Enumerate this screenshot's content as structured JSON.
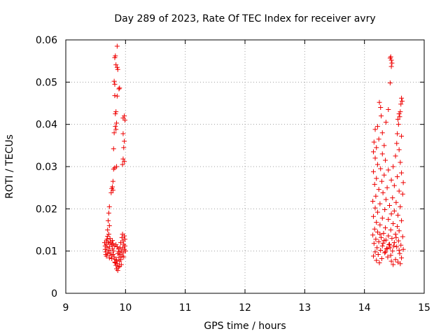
{
  "chart_data": {
    "type": "scatter",
    "title": "Day 289 of 2023, Rate Of TEC Index for receiver avry",
    "xlabel": "GPS time / hours",
    "ylabel": "ROTI / TECUs",
    "xlim": [
      9,
      15
    ],
    "ylim": [
      0,
      0.06
    ],
    "xticks": [
      9,
      10,
      11,
      12,
      13,
      14,
      15
    ],
    "xtick_labels": [
      "9",
      "10",
      "11",
      "12",
      "13",
      "14",
      "15"
    ],
    "yticks": [
      0,
      0.01,
      0.02,
      0.03,
      0.04,
      0.05,
      0.06
    ],
    "ytick_labels": [
      "0",
      "0.01",
      "0.02",
      "0.03",
      "0.04",
      "0.05",
      "0.06"
    ],
    "grid": true,
    "marker": "plus",
    "color": "#ee0000",
    "series": [
      {
        "name": "ROTI",
        "points": [
          [
            9.86,
            0.0585
          ],
          [
            9.83,
            0.0562
          ],
          [
            9.82,
            0.0558
          ],
          [
            9.84,
            0.0541
          ],
          [
            9.86,
            0.0535
          ],
          [
            9.87,
            0.053
          ],
          [
            9.81,
            0.0502
          ],
          [
            9.82,
            0.0495
          ],
          [
            9.9,
            0.0486
          ],
          [
            9.89,
            0.0484
          ],
          [
            9.82,
            0.0468
          ],
          [
            9.86,
            0.0467
          ],
          [
            9.84,
            0.043
          ],
          [
            9.83,
            0.0425
          ],
          [
            9.98,
            0.042
          ],
          [
            9.96,
            0.0415
          ],
          [
            9.99,
            0.041
          ],
          [
            9.85,
            0.0403
          ],
          [
            9.83,
            0.0395
          ],
          [
            9.84,
            0.0388
          ],
          [
            9.81,
            0.038
          ],
          [
            9.96,
            0.0378
          ],
          [
            9.98,
            0.036
          ],
          [
            9.97,
            0.0345
          ],
          [
            9.8,
            0.0342
          ],
          [
            9.96,
            0.0318
          ],
          [
            9.98,
            0.0312
          ],
          [
            9.95,
            0.0305
          ],
          [
            9.85,
            0.03
          ],
          [
            9.82,
            0.0297
          ],
          [
            9.8,
            0.0294
          ],
          [
            9.79,
            0.0265
          ],
          [
            9.78,
            0.0252
          ],
          [
            9.77,
            0.0248
          ],
          [
            9.79,
            0.0244
          ],
          [
            9.76,
            0.0238
          ],
          [
            9.73,
            0.0205
          ],
          [
            9.72,
            0.019
          ],
          [
            9.71,
            0.0172
          ],
          [
            9.73,
            0.016
          ],
          [
            9.7,
            0.015
          ],
          [
            9.72,
            0.014
          ],
          [
            9.7,
            0.0135
          ],
          [
            9.74,
            0.013
          ],
          [
            9.69,
            0.0128
          ],
          [
            9.68,
            0.0124
          ],
          [
            9.71,
            0.012
          ],
          [
            9.75,
            0.0118
          ],
          [
            9.77,
            0.0115
          ],
          [
            9.66,
            0.0112
          ],
          [
            9.73,
            0.011
          ],
          [
            9.69,
            0.0108
          ],
          [
            9.78,
            0.0105
          ],
          [
            9.72,
            0.0102
          ],
          [
            9.8,
            0.01
          ],
          [
            9.67,
            0.0098
          ],
          [
            9.74,
            0.0096
          ],
          [
            9.7,
            0.0094
          ],
          [
            9.79,
            0.0092
          ],
          [
            9.76,
            0.009
          ],
          [
            9.68,
            0.0088
          ],
          [
            9.81,
            0.0086
          ],
          [
            9.73,
            0.0084
          ],
          [
            9.77,
            0.0082
          ],
          [
            9.83,
            0.008
          ],
          [
            9.85,
            0.0078
          ],
          [
            9.82,
            0.0074
          ],
          [
            9.86,
            0.007
          ],
          [
            9.84,
            0.0066
          ],
          [
            9.88,
            0.0062
          ],
          [
            9.85,
            0.0058
          ],
          [
            9.87,
            0.0054
          ],
          [
            9.83,
            0.0072
          ],
          [
            9.9,
            0.0076
          ],
          [
            9.92,
            0.008
          ],
          [
            9.89,
            0.0085
          ],
          [
            9.94,
            0.0088
          ],
          [
            9.91,
            0.0092
          ],
          [
            9.96,
            0.0096
          ],
          [
            9.93,
            0.01
          ],
          [
            9.98,
            0.0104
          ],
          [
            9.95,
            0.0108
          ],
          [
            9.99,
            0.0112
          ],
          [
            9.97,
            0.0116
          ],
          [
            9.92,
            0.012
          ],
          [
            9.96,
            0.0124
          ],
          [
            9.99,
            0.0128
          ],
          [
            9.94,
            0.0132
          ],
          [
            9.98,
            0.0136
          ],
          [
            9.95,
            0.014
          ],
          [
            9.88,
            0.0105
          ],
          [
            9.86,
            0.011
          ],
          [
            9.84,
            0.0115
          ],
          [
            9.89,
            0.0098
          ],
          [
            9.87,
            0.0094
          ],
          [
            9.91,
            0.0108
          ],
          [
            9.78,
            0.0125
          ],
          [
            9.75,
            0.0122
          ],
          [
            9.81,
            0.0112
          ],
          [
            9.79,
            0.0118
          ],
          [
            9.68,
            0.0116
          ],
          [
            9.66,
            0.0104
          ],
          [
            9.67,
            0.0092
          ],
          [
            9.93,
            0.0068
          ],
          [
            9.9,
            0.0064
          ],
          [
            9.97,
            0.0086
          ],
          [
            10.0,
            0.01
          ],
          [
            9.65,
            0.012
          ],
          [
            14.44,
            0.056
          ],
          [
            14.45,
            0.0552
          ],
          [
            14.43,
            0.0557
          ],
          [
            14.46,
            0.0545
          ],
          [
            14.45,
            0.0537
          ],
          [
            14.62,
            0.0462
          ],
          [
            14.63,
            0.0455
          ],
          [
            14.61,
            0.0448
          ],
          [
            14.43,
            0.0498
          ],
          [
            14.4,
            0.0435
          ],
          [
            14.25,
            0.0452
          ],
          [
            14.27,
            0.044
          ],
          [
            14.6,
            0.043
          ],
          [
            14.58,
            0.0425
          ],
          [
            14.59,
            0.0418
          ],
          [
            14.28,
            0.042
          ],
          [
            14.56,
            0.0412
          ],
          [
            14.36,
            0.0405
          ],
          [
            14.57,
            0.04
          ],
          [
            14.22,
            0.0395
          ],
          [
            14.18,
            0.0388
          ],
          [
            14.3,
            0.038
          ],
          [
            14.55,
            0.0378
          ],
          [
            14.62,
            0.0372
          ],
          [
            14.24,
            0.0365
          ],
          [
            14.16,
            0.0358
          ],
          [
            14.54,
            0.0355
          ],
          [
            14.33,
            0.035
          ],
          [
            14.2,
            0.0345
          ],
          [
            14.58,
            0.034
          ],
          [
            14.15,
            0.0335
          ],
          [
            14.3,
            0.033
          ],
          [
            14.52,
            0.0325
          ],
          [
            14.18,
            0.032
          ],
          [
            14.35,
            0.0315
          ],
          [
            14.6,
            0.031
          ],
          [
            14.22,
            0.0305
          ],
          [
            14.48,
            0.03
          ],
          [
            14.27,
            0.0295
          ],
          [
            14.4,
            0.0292
          ],
          [
            14.15,
            0.0288
          ],
          [
            14.62,
            0.0285
          ],
          [
            14.33,
            0.028
          ],
          [
            14.55,
            0.0276
          ],
          [
            14.2,
            0.0272
          ],
          [
            14.45,
            0.0268
          ],
          [
            14.29,
            0.0265
          ],
          [
            14.65,
            0.0262
          ],
          [
            14.17,
            0.0258
          ],
          [
            14.5,
            0.0255
          ],
          [
            14.38,
            0.025
          ],
          [
            14.24,
            0.0246
          ],
          [
            14.58,
            0.0242
          ],
          [
            14.31,
            0.0238
          ],
          [
            14.64,
            0.0235
          ],
          [
            14.19,
            0.023
          ],
          [
            14.47,
            0.0226
          ],
          [
            14.36,
            0.0222
          ],
          [
            14.14,
            0.0218
          ],
          [
            14.53,
            0.0215
          ],
          [
            14.26,
            0.0212
          ],
          [
            14.42,
            0.0208
          ],
          [
            14.6,
            0.0205
          ],
          [
            14.18,
            0.0202
          ],
          [
            14.34,
            0.0198
          ],
          [
            14.5,
            0.0195
          ],
          [
            14.22,
            0.0192
          ],
          [
            14.45,
            0.0188
          ],
          [
            14.56,
            0.0185
          ],
          [
            14.15,
            0.0182
          ],
          [
            14.3,
            0.0178
          ],
          [
            14.4,
            0.0175
          ],
          [
            14.62,
            0.0172
          ],
          [
            14.2,
            0.0168
          ],
          [
            14.48,
            0.0165
          ],
          [
            14.26,
            0.0162
          ],
          [
            14.55,
            0.0158
          ],
          [
            14.35,
            0.0155
          ],
          [
            14.17,
            0.0152
          ],
          [
            14.44,
            0.015
          ],
          [
            14.58,
            0.0148
          ],
          [
            14.22,
            0.0145
          ],
          [
            14.32,
            0.0142
          ],
          [
            14.52,
            0.014
          ],
          [
            14.14,
            0.0138
          ],
          [
            14.4,
            0.0136
          ],
          [
            14.64,
            0.0134
          ],
          [
            14.28,
            0.0132
          ],
          [
            14.46,
            0.013
          ],
          [
            14.19,
            0.0128
          ],
          [
            14.36,
            0.0126
          ],
          [
            14.57,
            0.0124
          ],
          [
            14.24,
            0.0122
          ],
          [
            14.5,
            0.012
          ],
          [
            14.16,
            0.0118
          ],
          [
            14.42,
            0.0116
          ],
          [
            14.61,
            0.0114
          ],
          [
            14.3,
            0.0112
          ],
          [
            14.54,
            0.011
          ],
          [
            14.21,
            0.0108
          ],
          [
            14.38,
            0.0106
          ],
          [
            14.65,
            0.0104
          ],
          [
            14.27,
            0.0102
          ],
          [
            14.47,
            0.01
          ],
          [
            14.18,
            0.0098
          ],
          [
            14.34,
            0.0096
          ],
          [
            14.59,
            0.0094
          ],
          [
            14.23,
            0.0092
          ],
          [
            14.44,
            0.009
          ],
          [
            14.15,
            0.0088
          ],
          [
            14.39,
            0.0086
          ],
          [
            14.62,
            0.0084
          ],
          [
            14.29,
            0.0082
          ],
          [
            14.52,
            0.008
          ],
          [
            14.2,
            0.0078
          ],
          [
            14.45,
            0.0076
          ],
          [
            14.56,
            0.0074
          ],
          [
            14.25,
            0.0072
          ],
          [
            14.6,
            0.007
          ],
          [
            14.48,
            0.0068
          ],
          [
            14.33,
            0.0125
          ],
          [
            14.41,
            0.0115
          ],
          [
            14.37,
            0.0105
          ],
          [
            14.31,
            0.0118
          ],
          [
            14.43,
            0.0108
          ],
          [
            14.53,
            0.0132
          ],
          [
            14.26,
            0.014
          ],
          [
            14.49,
            0.0112
          ],
          [
            14.35,
            0.0098
          ],
          [
            14.58,
            0.0102
          ]
        ]
      }
    ]
  }
}
